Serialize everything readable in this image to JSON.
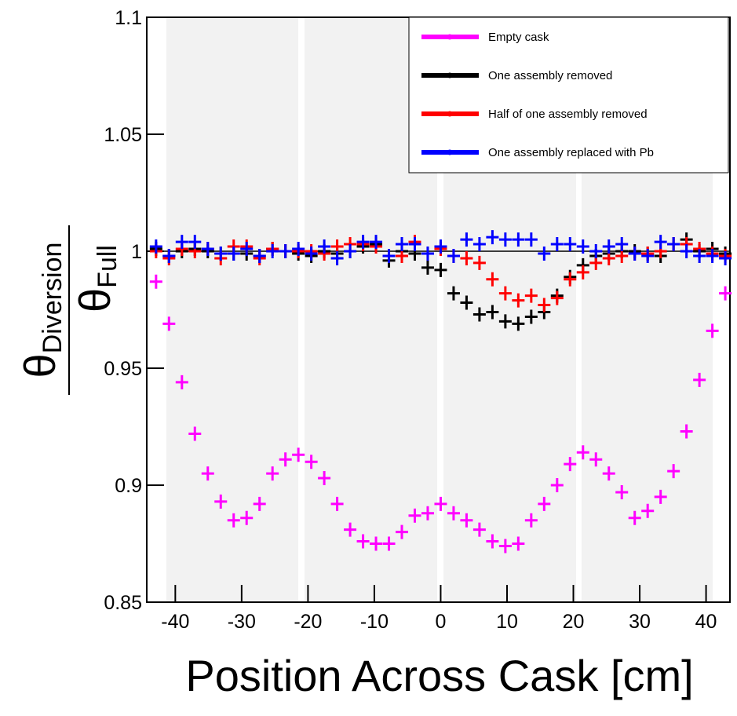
{
  "chart_data": {
    "type": "scatter",
    "xlabel": "Position Across Cask [cm]",
    "ylabel": {
      "numerator": {
        "symbol": "θ",
        "subscript": "Diversion"
      },
      "denominator": {
        "symbol": "θ",
        "subscript": "Full"
      }
    },
    "x": [
      -42.9,
      -40.95,
      -39,
      -37.05,
      -35.1,
      -33.15,
      -31.2,
      -29.25,
      -27.3,
      -25.35,
      -23.4,
      -21.45,
      -19.5,
      -17.55,
      -15.6,
      -13.65,
      -11.7,
      -9.75,
      -7.8,
      -5.85,
      -3.9,
      -1.95,
      0,
      1.95,
      3.9,
      5.85,
      7.8,
      9.75,
      11.7,
      13.65,
      15.6,
      17.55,
      19.5,
      21.45,
      23.4,
      25.35,
      27.3,
      29.25,
      31.2,
      33.15,
      35.1,
      37.05,
      39,
      40.95,
      42.9
    ],
    "series": [
      {
        "name": "Empty cask",
        "color": "#ff00ff",
        "values": [
          0.987,
          0.969,
          0.944,
          0.922,
          0.905,
          0.893,
          0.885,
          0.886,
          0.892,
          0.905,
          0.911,
          0.913,
          0.91,
          0.903,
          0.892,
          0.881,
          0.876,
          0.875,
          0.875,
          0.88,
          0.887,
          0.888,
          0.892,
          0.888,
          0.885,
          0.881,
          0.876,
          0.874,
          0.875,
          0.885,
          0.892,
          0.9,
          0.909,
          0.914,
          0.911,
          0.905,
          0.897,
          0.886,
          0.889,
          0.895,
          0.906,
          0.923,
          0.945,
          0.966,
          0.982
        ]
      },
      {
        "name": "One assembly removed",
        "color": "#000000",
        "values": [
          1.001,
          0.998,
          1.0,
          1.001,
          1.0,
          0.999,
          0.999,
          0.999,
          0.998,
          1.001,
          1.0,
          0.999,
          0.998,
          1.0,
          0.999,
          1.0,
          1.002,
          1.003,
          0.996,
          1.0,
          0.999,
          0.993,
          0.992,
          0.982,
          0.978,
          0.973,
          0.974,
          0.97,
          0.969,
          0.972,
          0.974,
          0.981,
          0.989,
          0.994,
          0.998,
          0.999,
          1.0,
          1.0,
          0.999,
          0.998,
          1.003,
          1.005,
          1.0,
          1.001,
          0.999
        ]
      },
      {
        "name": "Half of one assembly removed",
        "color": "#ff0000",
        "values": [
          1.0,
          0.997,
          1.001,
          1.0,
          1.001,
          0.997,
          1.002,
          1.002,
          0.997,
          1.001,
          1.0,
          1.0,
          1.0,
          0.999,
          1.002,
          1.003,
          1.003,
          1.002,
          0.998,
          0.998,
          1.004,
          0.999,
          1.001,
          0.998,
          0.997,
          0.995,
          0.988,
          0.982,
          0.979,
          0.981,
          0.977,
          0.98,
          0.988,
          0.991,
          0.995,
          0.997,
          0.998,
          0.999,
          0.999,
          1.0,
          1.003,
          1.003,
          1.001,
          0.999,
          0.998
        ]
      },
      {
        "name": "One assembly replaced with Pb",
        "color": "#0000ff",
        "values": [
          1.002,
          0.998,
          1.004,
          1.004,
          1.001,
          0.999,
          0.999,
          1.001,
          0.998,
          1.0,
          1.0,
          1.001,
          0.999,
          1.002,
          0.997,
          1.0,
          1.004,
          1.004,
          0.998,
          1.003,
          1.003,
          0.999,
          1.002,
          0.998,
          1.005,
          1.003,
          1.006,
          1.005,
          1.005,
          1.005,
          0.999,
          1.003,
          1.003,
          1.002,
          1.0,
          1.002,
          1.003,
          0.999,
          0.998,
          1.004,
          1.003,
          1.0,
          0.998,
          0.998,
          0.997
        ]
      }
    ],
    "hline": 1,
    "xlim": [
      -44.3,
      43.6
    ],
    "xticks": [
      -40,
      -30,
      -20,
      -10,
      0,
      10,
      20,
      30,
      40
    ],
    "ylim": [
      0.85,
      1.1
    ],
    "yticks": [
      0.85,
      0.9,
      0.95,
      1,
      1.05,
      1.1
    ],
    "legend": "upper right"
  }
}
